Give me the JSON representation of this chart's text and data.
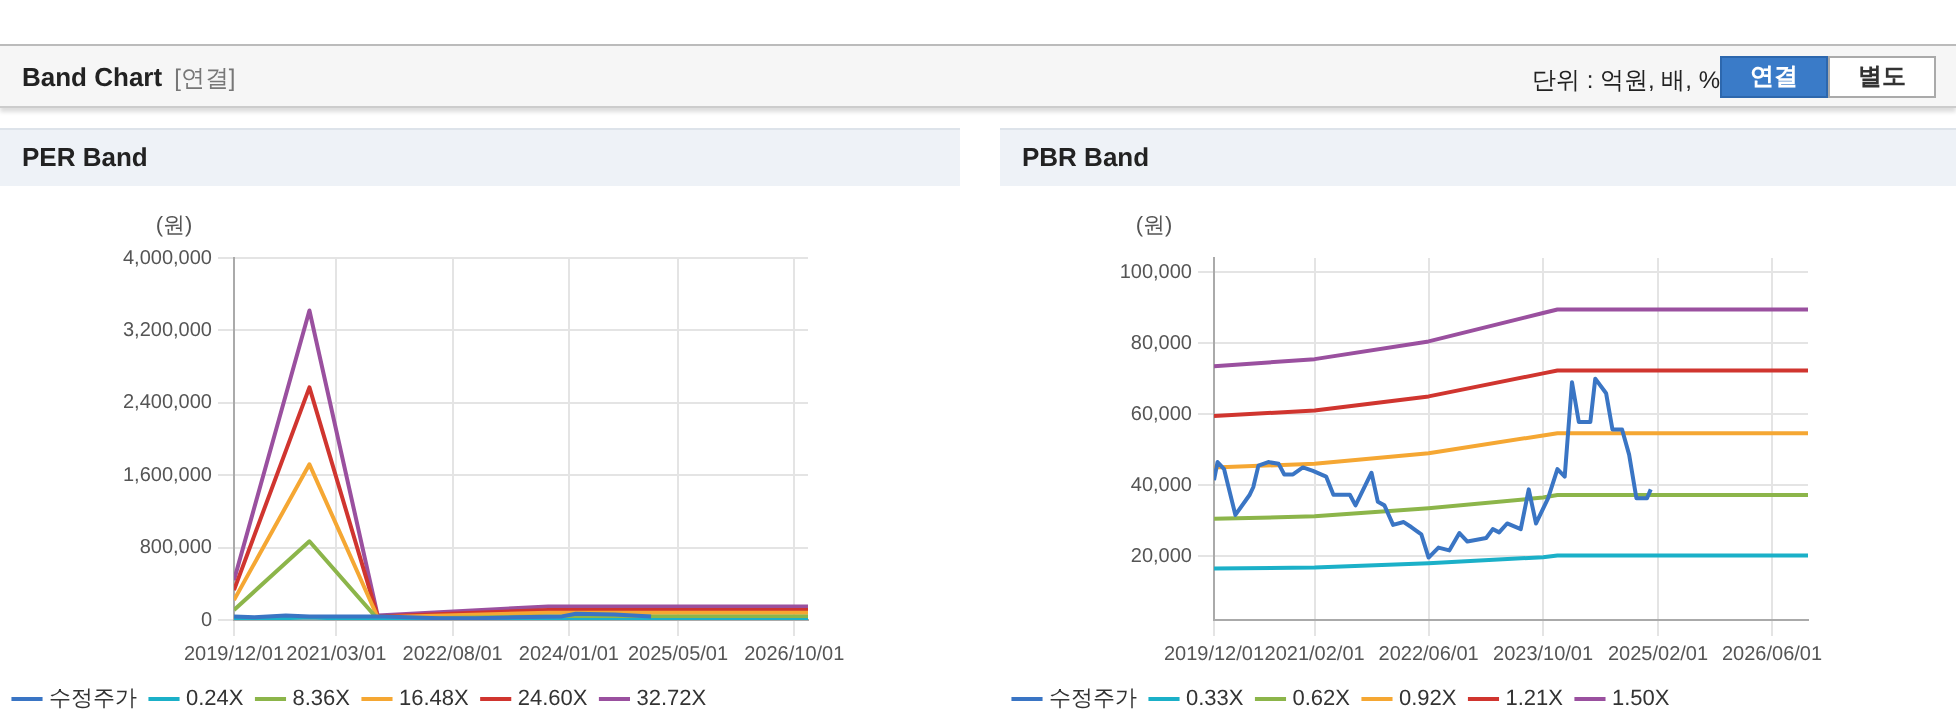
{
  "chart_data": [
    {
      "type": "other",
      "title": "Band Chart",
      "subtitle": "[연결]",
      "annotations": [
        "단위 : 억원, 배, %",
        "연결",
        "별도"
      ]
    },
    {
      "type": "line",
      "title": "PER Band",
      "ylabel": "(원)",
      "grid": true,
      "legend": "bottom",
      "marker": "none",
      "line_style": "solid",
      "xlim": [
        "2019-12-01",
        "2026-12-01"
      ],
      "xticks": [
        {
          "value": "2019-12-01",
          "label": "2019/12/01"
        },
        {
          "value": "2021-03-01",
          "label": "2021/03/01"
        },
        {
          "value": "2022-08-01",
          "label": "2022/08/01"
        },
        {
          "value": "2024-01-01",
          "label": "2024/01/01"
        },
        {
          "value": "2025-05-01",
          "label": "2025/05/01"
        },
        {
          "value": "2026-10-01",
          "label": "2026/10/01"
        }
      ],
      "ylim": [
        0,
        4000000
      ],
      "yticks": [
        {
          "value": 0,
          "label": "0"
        },
        {
          "value": 800000,
          "label": "800,000"
        },
        {
          "value": 1600000,
          "label": "1,600,000"
        },
        {
          "value": 2400000,
          "label": "2,400,000"
        },
        {
          "value": 3200000,
          "label": "3,200,000"
        },
        {
          "value": 4000000,
          "label": "4,000,000"
        }
      ],
      "series": [
        {
          "name": "수정주가",
          "color": "#3a75c4",
          "x": [
            "2019-12-01",
            "2020-03-01",
            "2020-07-19",
            "2020-11-01",
            "2021-03-22",
            "2021-07-01",
            "2021-10-01",
            "2022-06-01",
            "2022-11-13",
            "2023-05-01",
            "2023-12-01",
            "2024-02-01",
            "2024-07-22",
            "2025-01-01"
          ],
          "values": [
            40000,
            30000,
            50000,
            40000,
            40000,
            40000,
            40000,
            20000,
            20000,
            30000,
            40000,
            70000,
            60000,
            40000
          ]
        },
        {
          "name": "0.24X",
          "color": "#1bb0c8",
          "x": [
            "2019-12-01",
            "2020-11-01",
            "2021-09-01",
            "2023-10-01",
            "2026-12-01"
          ],
          "values": [
            0,
            30000,
            0,
            0,
            0
          ]
        },
        {
          "name": "8.36X",
          "color": "#8cb54a",
          "x": [
            "2019-12-01",
            "2020-11-01",
            "2021-09-01",
            "2023-10-01",
            "2026-12-01"
          ],
          "values": [
            110000,
            870000,
            10000,
            40000,
            40000
          ]
        },
        {
          "name": "16.48X",
          "color": "#f5a733",
          "x": [
            "2019-12-01",
            "2020-11-01",
            "2021-09-01",
            "2023-10-01",
            "2026-12-01"
          ],
          "values": [
            220000,
            1720000,
            30000,
            80000,
            80000
          ]
        },
        {
          "name": "24.60X",
          "color": "#d0352f",
          "x": [
            "2019-12-01",
            "2020-11-01",
            "2021-09-01",
            "2023-10-01",
            "2026-12-01"
          ],
          "values": [
            330000,
            2570000,
            40000,
            110000,
            110000
          ]
        },
        {
          "name": "32.72X",
          "color": "#9a509f",
          "x": [
            "2019-12-01",
            "2020-11-01",
            "2021-09-01",
            "2023-10-01",
            "2026-12-01"
          ],
          "values": [
            440000,
            3420000,
            50000,
            150000,
            150000
          ]
        }
      ]
    },
    {
      "type": "line",
      "title": "PBR Band",
      "ylabel": "(원)",
      "grid": true,
      "legend": "bottom",
      "marker": "none",
      "line_style": "solid",
      "xlim": [
        "2019-12-01",
        "2026-11-01"
      ],
      "xticks": [
        {
          "value": "2019-12-01",
          "label": "2019/12/01"
        },
        {
          "value": "2021-02-01",
          "label": "2021/02/01"
        },
        {
          "value": "2022-06-01",
          "label": "2022/06/01"
        },
        {
          "value": "2023-10-01",
          "label": "2023/10/01"
        },
        {
          "value": "2025-02-01",
          "label": "2025/02/01"
        },
        {
          "value": "2026-06-01",
          "label": "2026/06/01"
        }
      ],
      "ylim": [
        2000,
        104000
      ],
      "yticks": [
        {
          "value": 20000,
          "label": "20,000"
        },
        {
          "value": 40000,
          "label": "40,000"
        },
        {
          "value": 60000,
          "label": "60,000"
        },
        {
          "value": 80000,
          "label": "80,000"
        },
        {
          "value": 100000,
          "label": "100,000"
        }
      ],
      "series": [
        {
          "name": "수정주가",
          "color": "#3a75c4",
          "x": [
            "2019-12-01",
            "2019-12-16",
            "2020-01-13",
            "2020-03-01",
            "2020-05-01",
            "2020-05-16",
            "2020-06-07",
            "2020-07-19",
            "2020-09-01",
            "2020-09-25",
            "2020-11-01",
            "2020-12-13",
            "2021-01-25",
            "2021-03-22",
            "2021-04-22",
            "2021-07-01",
            "2021-07-25",
            "2021-10-01",
            "2021-10-28",
            "2021-11-25",
            "2022-01-01",
            "2022-02-15",
            "2022-03-19",
            "2022-05-01",
            "2022-06-01",
            "2022-07-13",
            "2022-08-28",
            "2022-10-10",
            "2022-11-13",
            "2023-02-01",
            "2023-03-01",
            "2023-03-28",
            "2023-05-01",
            "2023-06-28",
            "2023-08-01",
            "2023-09-01",
            "2023-10-22",
            "2023-12-01",
            "2024-01-01",
            "2024-02-01",
            "2024-03-01",
            "2024-04-19",
            "2024-05-10",
            "2024-06-25",
            "2024-07-22",
            "2024-09-01",
            "2024-10-01",
            "2024-11-01",
            "2024-12-16",
            "2025-01-01"
          ],
          "values": [
            41400,
            46500,
            44500,
            31600,
            37300,
            39400,
            45500,
            46500,
            46000,
            43000,
            43000,
            45000,
            44000,
            42400,
            37300,
            37300,
            34300,
            43500,
            35300,
            34300,
            28800,
            29600,
            28200,
            26100,
            19600,
            22400,
            21600,
            26500,
            24100,
            25100,
            27600,
            26700,
            29200,
            27600,
            38800,
            29200,
            36300,
            44500,
            42400,
            69000,
            57800,
            57800,
            70000,
            65900,
            55700,
            55700,
            48600,
            36300,
            36300,
            38800
          ]
        },
        {
          "name": "0.33X",
          "color": "#1bb0c8",
          "x": [
            "2019-12-01",
            "2021-02-01",
            "2022-06-01",
            "2023-10-01",
            "2023-12-01",
            "2026-11-01"
          ],
          "values": [
            16500,
            16800,
            18000,
            19700,
            20200,
            20200
          ]
        },
        {
          "name": "0.62X",
          "color": "#8cb54a",
          "x": [
            "2019-12-01",
            "2021-02-01",
            "2022-06-01",
            "2023-10-01",
            "2023-12-01",
            "2026-11-01"
          ],
          "values": [
            30500,
            31200,
            33500,
            36500,
            37200,
            37200
          ]
        },
        {
          "name": "0.92X",
          "color": "#f5a733",
          "x": [
            "2019-12-01",
            "2021-02-01",
            "2022-06-01",
            "2023-10-01",
            "2023-12-01",
            "2026-11-01"
          ],
          "values": [
            45000,
            46000,
            49000,
            54000,
            54600,
            54600
          ]
        },
        {
          "name": "1.21X",
          "color": "#d0352f",
          "x": [
            "2019-12-01",
            "2021-02-01",
            "2022-06-01",
            "2023-10-01",
            "2023-12-01",
            "2026-11-01"
          ],
          "values": [
            59500,
            61000,
            65000,
            71500,
            72300,
            72300
          ]
        },
        {
          "name": "1.50X",
          "color": "#9a509f",
          "x": [
            "2019-12-01",
            "2021-02-01",
            "2022-06-01",
            "2023-10-01",
            "2023-12-01",
            "2026-11-01"
          ],
          "values": [
            73500,
            75500,
            80500,
            88500,
            89500,
            89500
          ]
        }
      ]
    }
  ]
}
